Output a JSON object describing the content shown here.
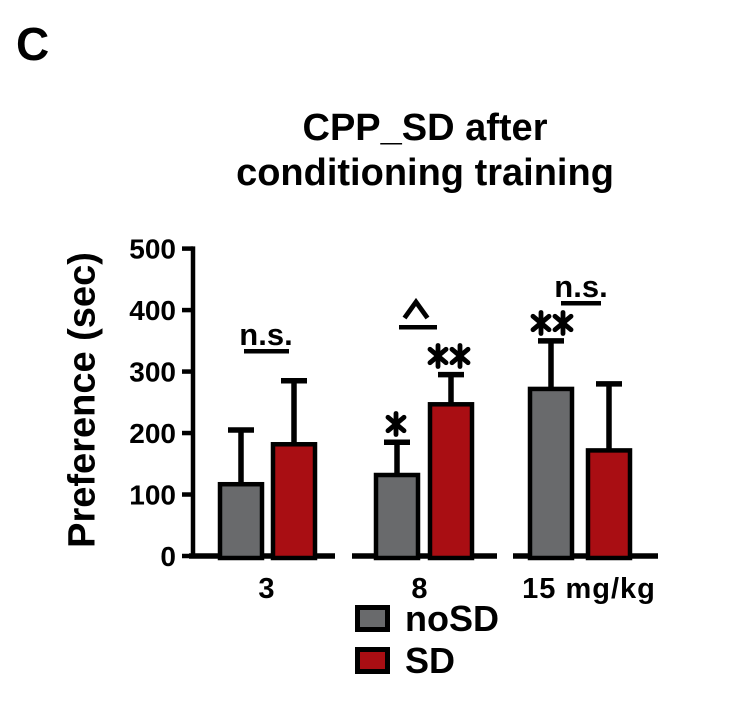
{
  "panel_label": "C",
  "chart_data": {
    "type": "bar",
    "title": "CPP_SD after conditioning training",
    "title_lines": [
      "CPP_SD after",
      "conditioning training"
    ],
    "ylabel": "Preference (sec)",
    "xlabel_unit": "mg/kg",
    "ylim": [
      0,
      500
    ],
    "yticks": [
      0,
      100,
      200,
      300,
      400,
      500
    ],
    "categories": [
      "3",
      "8",
      "15 mg/kg"
    ],
    "series": [
      {
        "name": "noSD",
        "color": "#696a6c",
        "values": [
          120,
          135,
          275
        ],
        "errors_plus": [
          85,
          50,
          75
        ]
      },
      {
        "name": "SD",
        "color": "#a90e13",
        "values": [
          185,
          250,
          175
        ],
        "errors_plus": [
          100,
          45,
          105
        ]
      }
    ],
    "legend": {
      "position": "bottom",
      "entries": [
        "noSD",
        "SD"
      ]
    },
    "grid": false,
    "axis_color": "#000000",
    "background": "#ffffff",
    "annotations": {
      "pair_comparisons": [
        {
          "category": "3",
          "label": "n.s."
        },
        {
          "category": "8",
          "label": "^"
        },
        {
          "category": "15 mg/kg",
          "label": "n.s."
        }
      ],
      "bar_marks": [
        {
          "category": "8",
          "series": "noSD",
          "label": "*"
        },
        {
          "category": "8",
          "series": "SD",
          "label": "**"
        },
        {
          "category": "15 mg/kg",
          "series": "noSD",
          "label": "**"
        }
      ]
    }
  }
}
